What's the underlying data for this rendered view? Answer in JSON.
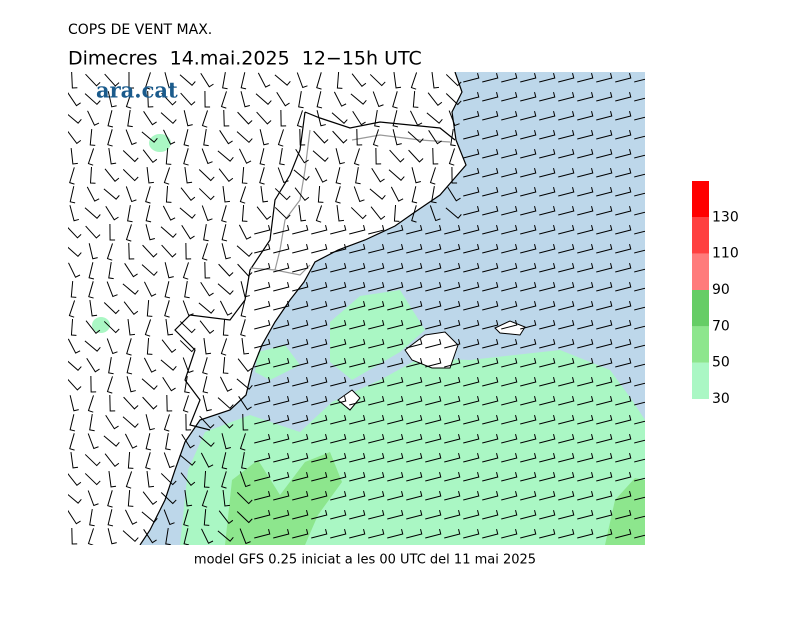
{
  "header": {
    "title": "COPS DE VENT MAX.",
    "subtitle": "Dimecres  14.mai.2025  12−15h UTC",
    "logo": "ara.cat"
  },
  "legend": {
    "range": [
      30,
      150
    ],
    "ticks": [
      30,
      50,
      70,
      90,
      110,
      130
    ],
    "colors": [
      "#aaf7c4",
      "#8de68d",
      "#66cd66",
      "#ff7b7b",
      "#ff4040",
      "#ff0000"
    ]
  },
  "footer": "model GFS 0.25 iniciat a les 00 UTC del 11 mai 2025"
}
